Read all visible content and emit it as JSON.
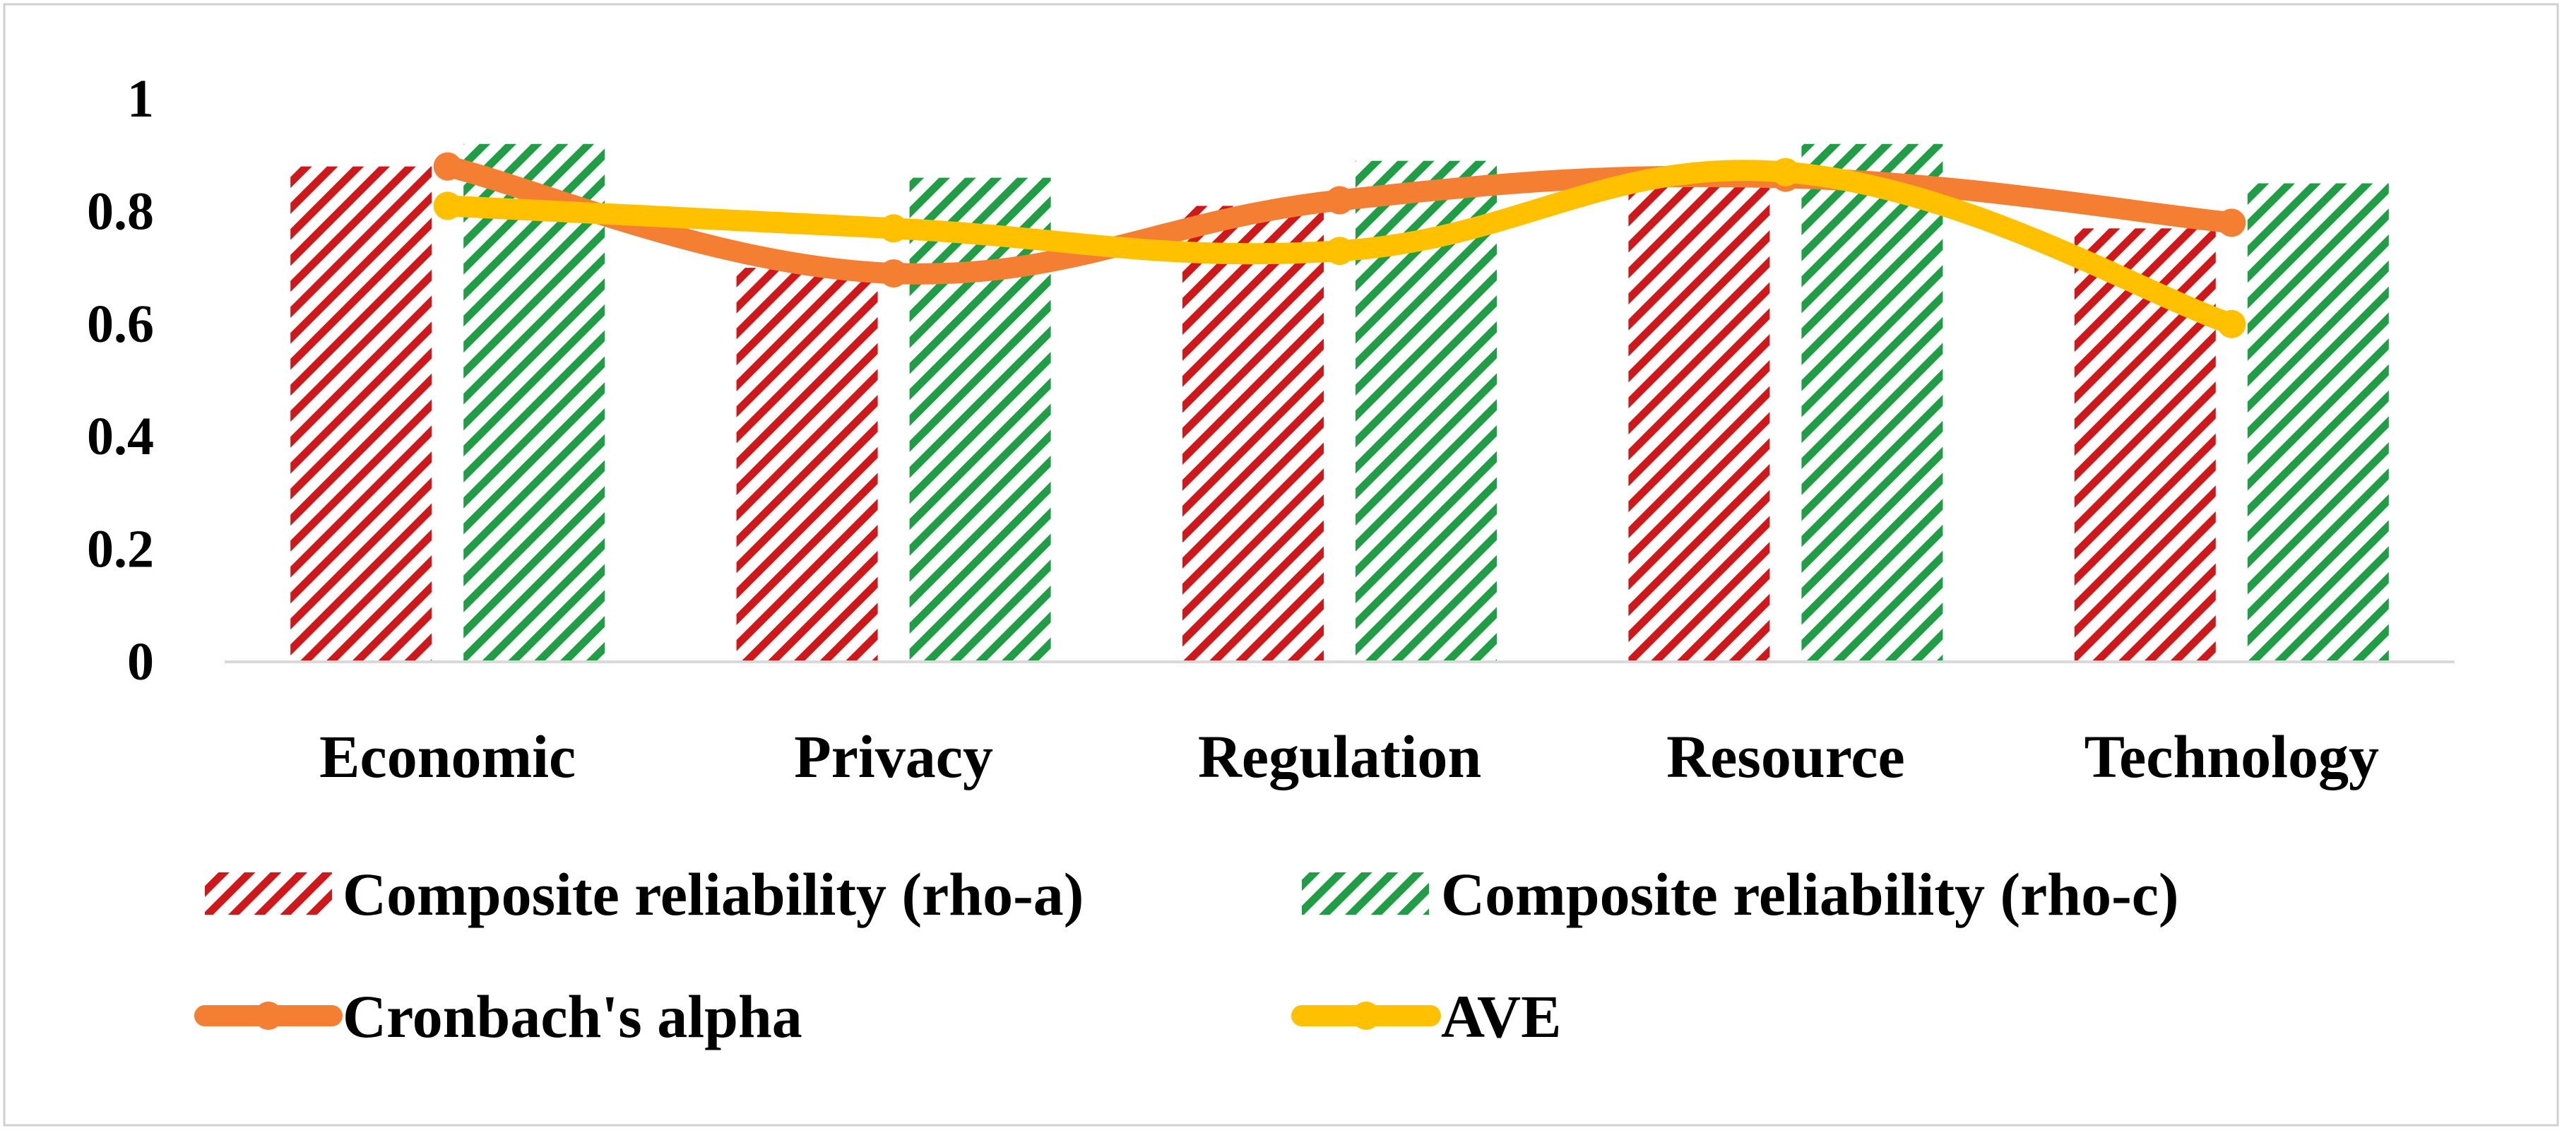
{
  "chart_data": {
    "type": "bar",
    "title": "",
    "xlabel": "",
    "ylabel": "",
    "categories": [
      "Economic",
      "Privacy",
      "Regulation",
      "Resource",
      "Technology"
    ],
    "ylim": [
      0,
      1
    ],
    "yticks": [
      "0",
      "0.2",
      "0.4",
      "0.6",
      "0.8",
      "1"
    ],
    "ytick_values": [
      0,
      0.2,
      0.4,
      0.6,
      0.8,
      1
    ],
    "grid": false,
    "legend_position": "bottom",
    "bar_series": [
      {
        "name": "Composite reliability (rho-a)",
        "values": [
          0.88,
          0.7,
          0.81,
          0.85,
          0.77
        ],
        "color": "#d0181a",
        "pattern": "diagonal-hatch"
      },
      {
        "name": "Composite reliability (rho-c)",
        "values": [
          0.92,
          0.86,
          0.89,
          0.92,
          0.85
        ],
        "color": "#1f9e45",
        "pattern": "diagonal-hatch"
      }
    ],
    "line_series": [
      {
        "name": "Cronbach's alpha",
        "values": [
          0.88,
          0.69,
          0.82,
          0.86,
          0.78
        ],
        "color": "#f47f32"
      },
      {
        "name": "AVE",
        "values": [
          0.81,
          0.77,
          0.73,
          0.87,
          0.6
        ],
        "color": "#ffc000"
      }
    ]
  }
}
